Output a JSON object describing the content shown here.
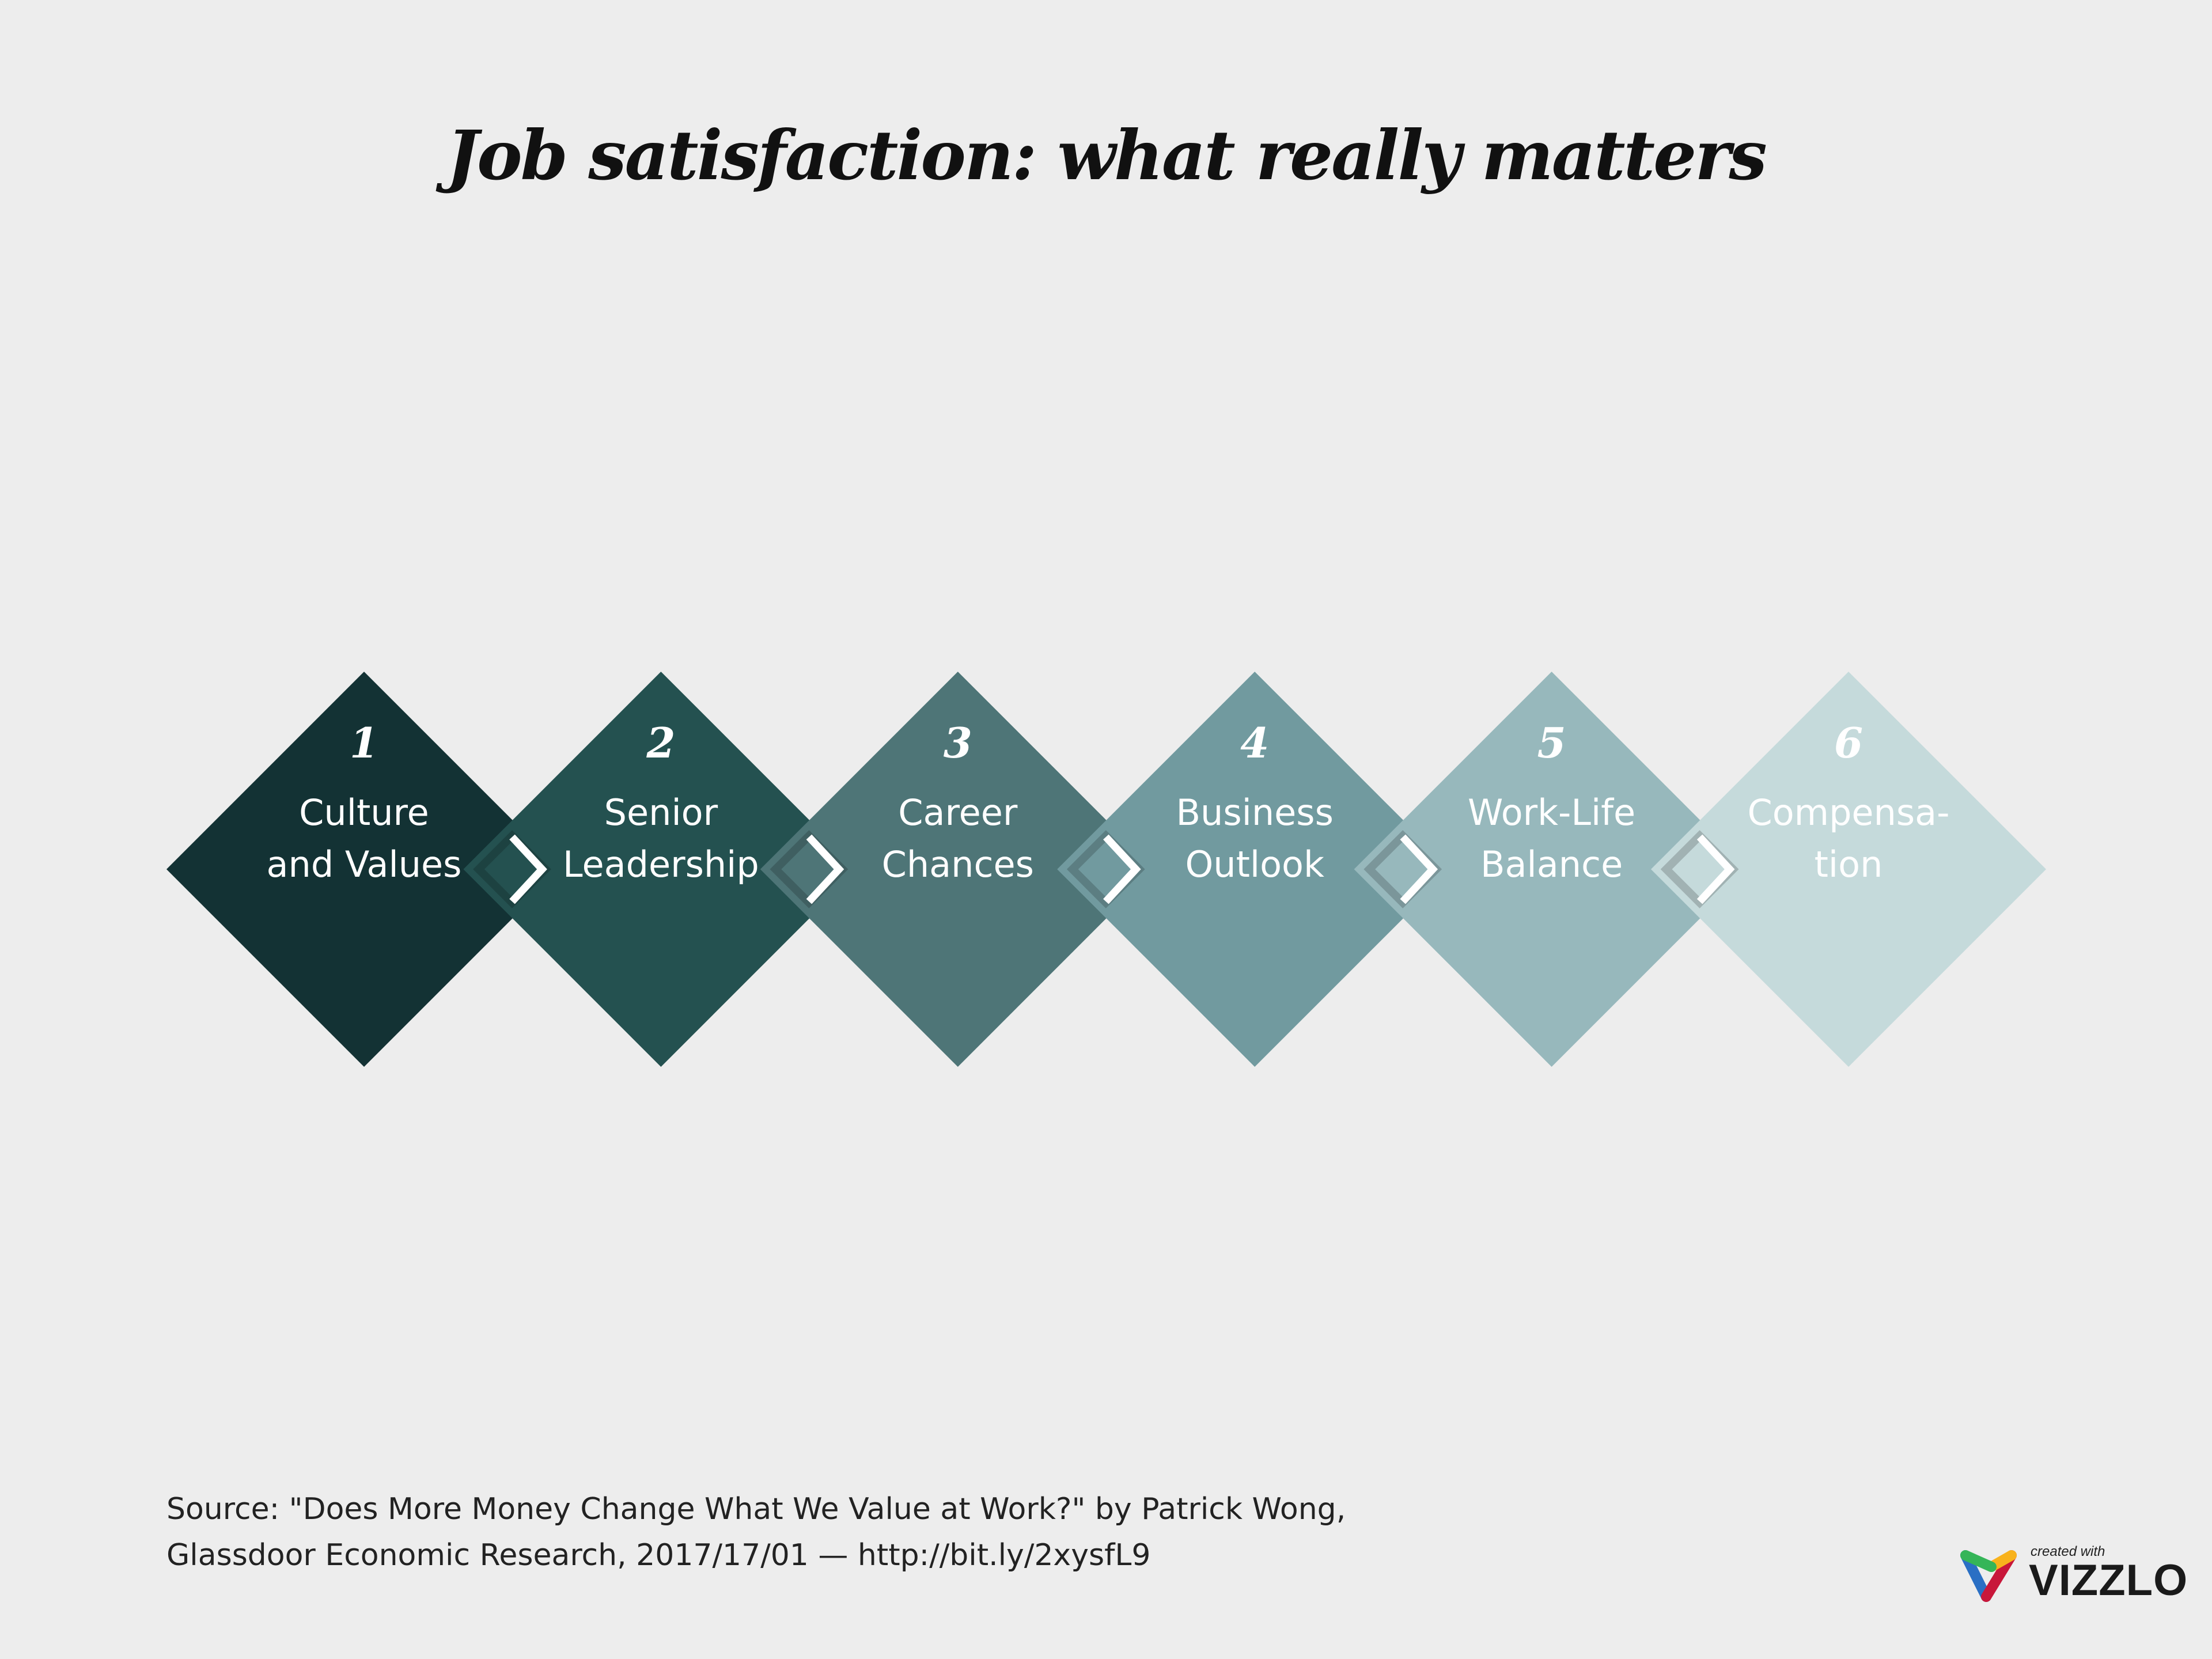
{
  "title": "Job satisfaction: what really matters",
  "steps": [
    {
      "number": "1",
      "line1": "Culture",
      "line2": "and Values",
      "color": "#133234"
    },
    {
      "number": "2",
      "line1": "Senior",
      "line2": "Leadership",
      "color": "#245150"
    },
    {
      "number": "3",
      "line1": "Career",
      "line2": "Chances",
      "color": "#4e7577"
    },
    {
      "number": "4",
      "line1": "Business",
      "line2": "Outlook",
      "color": "#719a9f"
    },
    {
      "number": "5",
      "line1": "Work-Life",
      "line2": "Balance",
      "color": "#97b8bc"
    },
    {
      "number": "6",
      "line1": "Compensa-",
      "line2": "tion",
      "color": "#c5dadb"
    }
  ],
  "source": {
    "line1": "Source: \"Does More Money Change What We Value at Work?\" by Patrick Wong,",
    "line2": "Glassdoor Economic Research, 2017/17/01 — http://bit.ly/2xysfL9"
  },
  "logo": {
    "small": "created with",
    "brand": "VIZZLO"
  },
  "background": "#ededed"
}
